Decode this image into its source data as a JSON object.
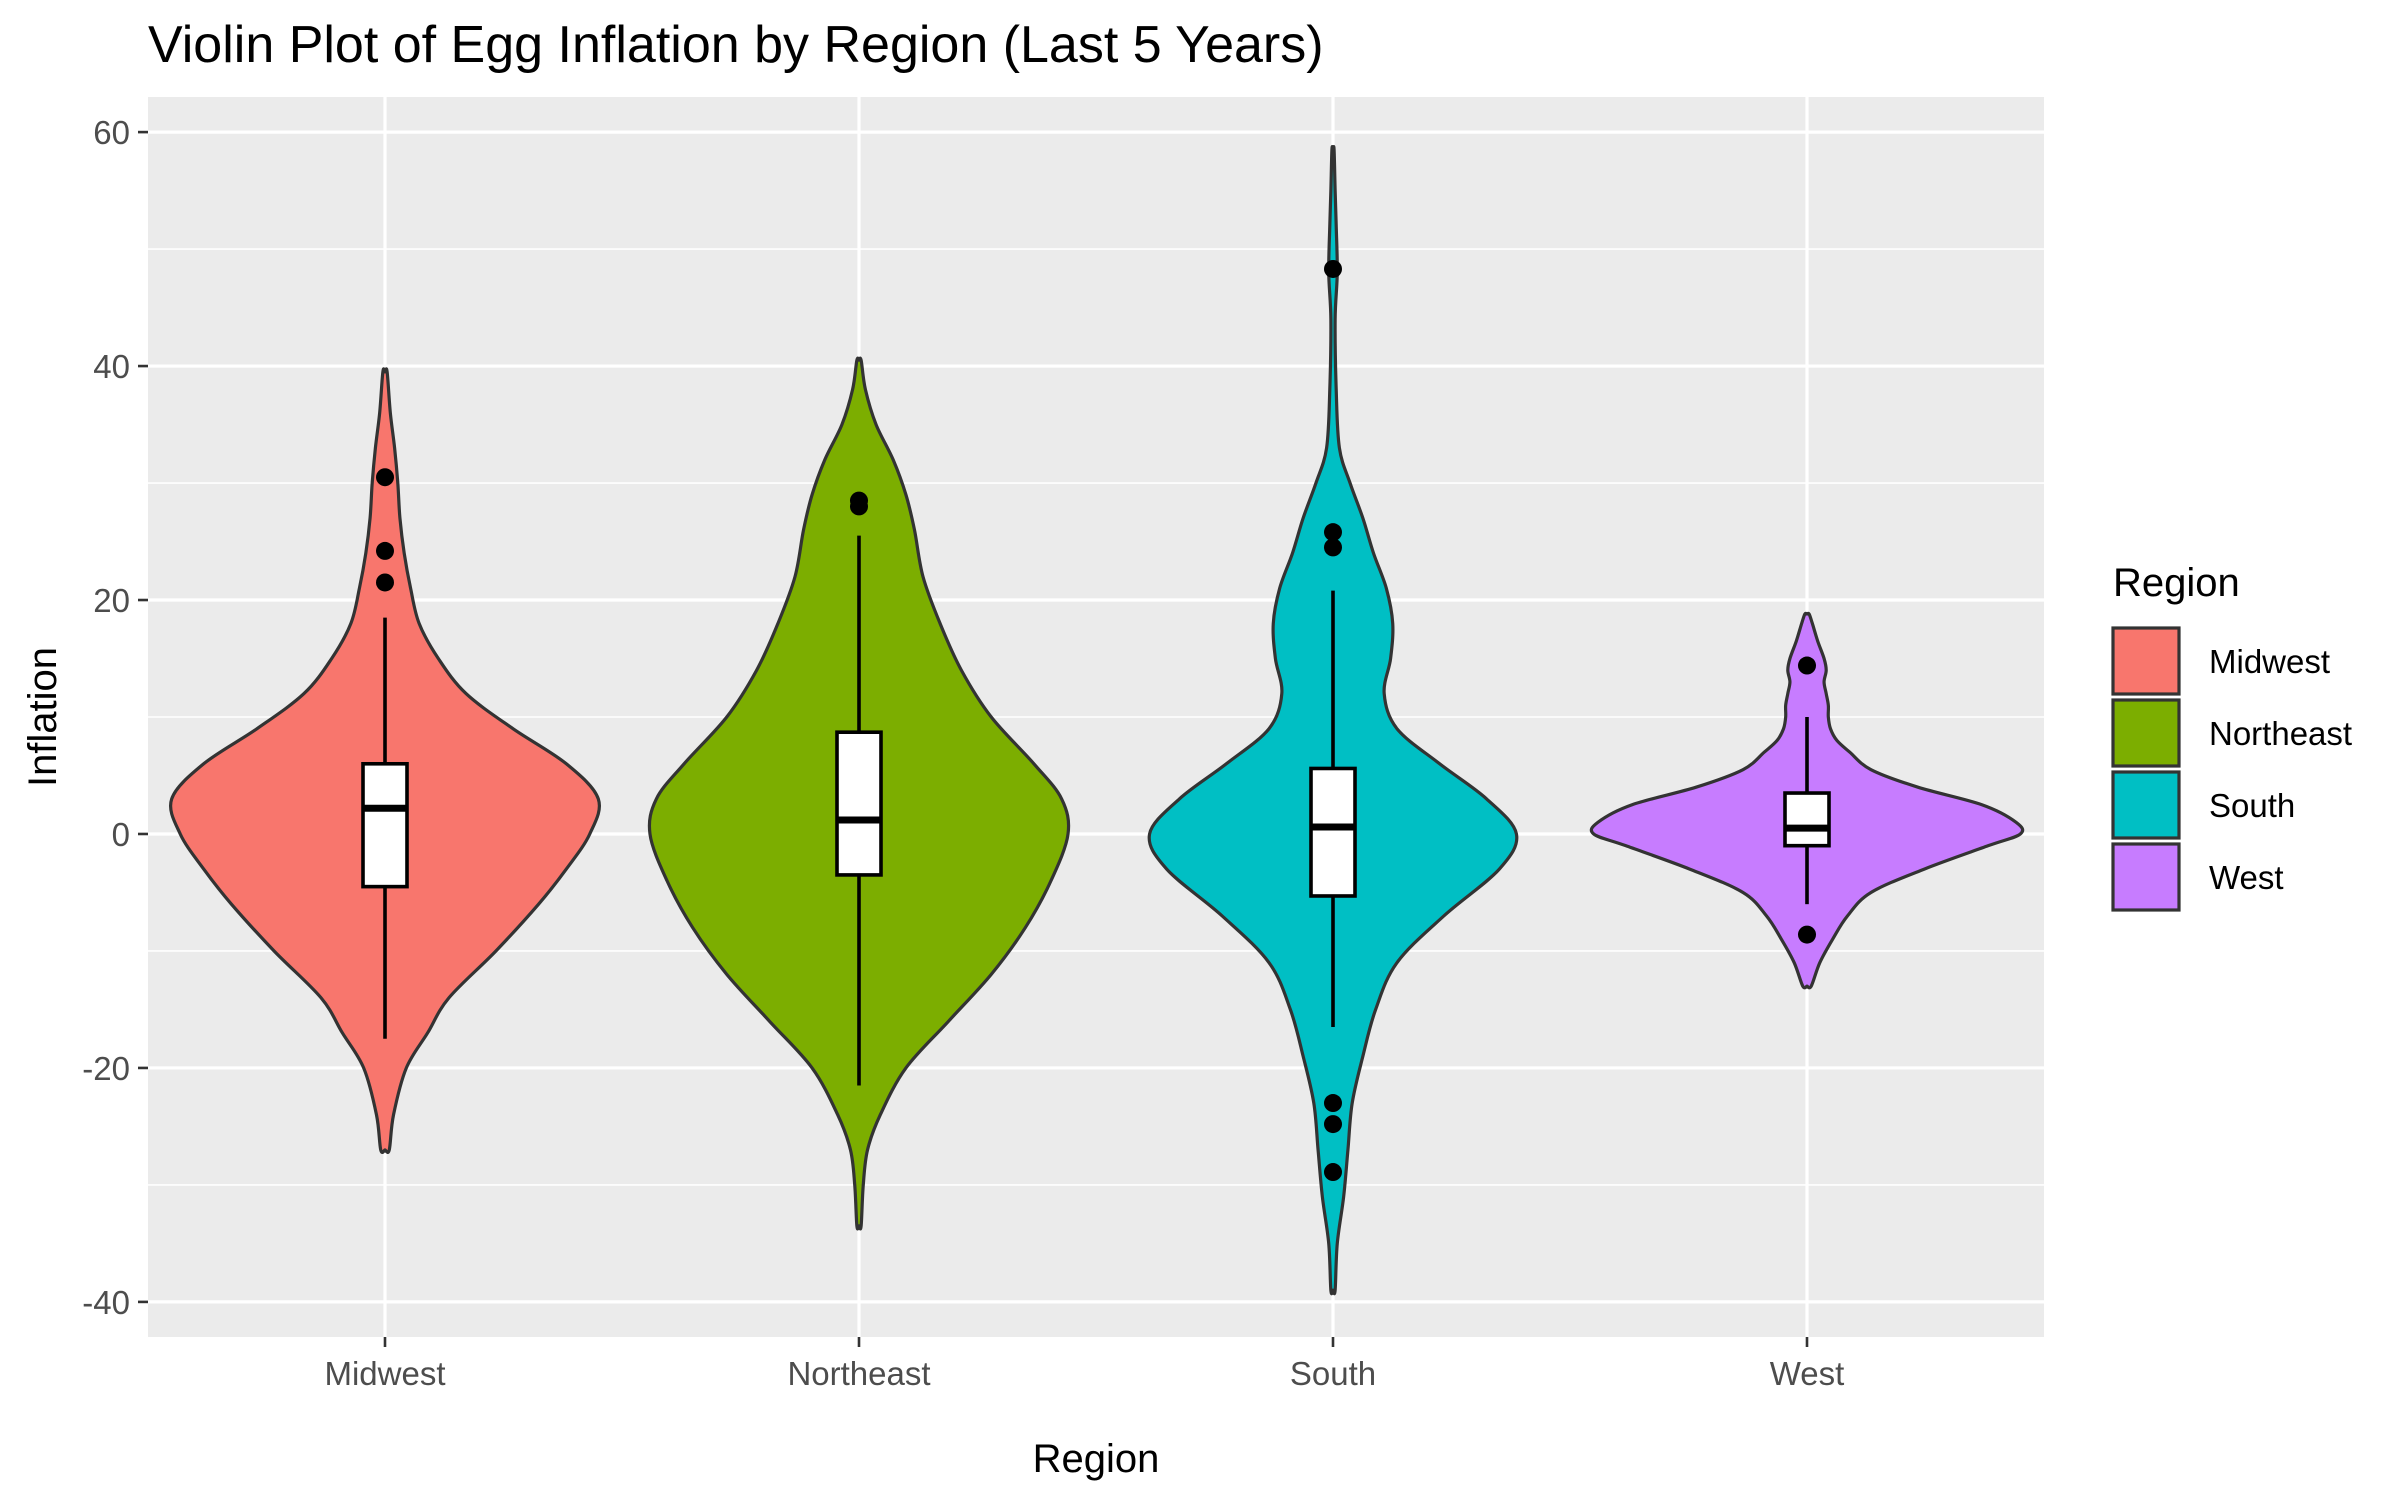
{
  "chart_data": {
    "type": "violin",
    "title": "Violin Plot of Egg Inflation by Region (Last 5 Years)",
    "xlabel": "Region",
    "ylabel": "Inflation",
    "ylim": [
      -43,
      63
    ],
    "y_ticks": [
      -40,
      -20,
      0,
      20,
      40,
      60
    ],
    "categories": [
      "Midwest",
      "Northeast",
      "South",
      "West"
    ],
    "legend": {
      "title": "Region",
      "position": "right"
    },
    "grid": true,
    "background": "#EBEBEB",
    "series": [
      {
        "name": "Midwest",
        "color": "#F8766D",
        "range": [
          -27,
          39.5
        ],
        "box": {
          "lower_whisker": -17.5,
          "q1": -4.5,
          "median": 2.2,
          "q3": 6.0,
          "upper_whisker": 18.5
        },
        "outliers": [
          30.5,
          24.2,
          21.5
        ],
        "density": [
          [
            -27,
            0.02
          ],
          [
            -24,
            0.04
          ],
          [
            -20,
            0.1
          ],
          [
            -17,
            0.2
          ],
          [
            -14,
            0.3
          ],
          [
            -10,
            0.52
          ],
          [
            -6,
            0.72
          ],
          [
            -3,
            0.85
          ],
          [
            0,
            0.96
          ],
          [
            3,
            1.0
          ],
          [
            6,
            0.85
          ],
          [
            9,
            0.6
          ],
          [
            12,
            0.38
          ],
          [
            15,
            0.25
          ],
          [
            18,
            0.16
          ],
          [
            21,
            0.12
          ],
          [
            24,
            0.09
          ],
          [
            27,
            0.07
          ],
          [
            30,
            0.06
          ],
          [
            33,
            0.045
          ],
          [
            36,
            0.025
          ],
          [
            39.5,
            0.01
          ]
        ]
      },
      {
        "name": "Northeast",
        "color": "#7CAE00",
        "range": [
          -33.5,
          40.5
        ],
        "box": {
          "lower_whisker": -21.5,
          "q1": -3.5,
          "median": 1.2,
          "q3": 8.7,
          "upper_whisker": 25.5
        },
        "outliers": [
          28.5,
          28.0
        ],
        "density": [
          [
            -33.5,
            0.01
          ],
          [
            -30,
            0.02
          ],
          [
            -27,
            0.04
          ],
          [
            -24,
            0.1
          ],
          [
            -20,
            0.22
          ],
          [
            -16,
            0.42
          ],
          [
            -12,
            0.62
          ],
          [
            -8,
            0.78
          ],
          [
            -4,
            0.9
          ],
          [
            0,
            0.98
          ],
          [
            3,
            0.95
          ],
          [
            6,
            0.82
          ],
          [
            10,
            0.62
          ],
          [
            14,
            0.48
          ],
          [
            18,
            0.38
          ],
          [
            22,
            0.3
          ],
          [
            26,
            0.26
          ],
          [
            29,
            0.22
          ],
          [
            32,
            0.16
          ],
          [
            35,
            0.08
          ],
          [
            38,
            0.03
          ],
          [
            40.5,
            0.01
          ]
        ]
      },
      {
        "name": "South",
        "color": "#00BFC4",
        "range": [
          -39,
          58.5
        ],
        "box": {
          "lower_whisker": -16.5,
          "q1": -5.3,
          "median": 0.6,
          "q3": 5.6,
          "upper_whisker": 20.8
        },
        "outliers": [
          48.3,
          25.8,
          24.5,
          -23.0,
          -24.8,
          -28.9
        ],
        "density": [
          [
            -39,
            0.01
          ],
          [
            -35,
            0.02
          ],
          [
            -31,
            0.05
          ],
          [
            -27,
            0.07
          ],
          [
            -23,
            0.09
          ],
          [
            -19,
            0.14
          ],
          [
            -15,
            0.2
          ],
          [
            -11,
            0.3
          ],
          [
            -7,
            0.52
          ],
          [
            -3,
            0.78
          ],
          [
            0,
            0.86
          ],
          [
            3,
            0.72
          ],
          [
            6,
            0.5
          ],
          [
            9,
            0.3
          ],
          [
            12,
            0.24
          ],
          [
            15,
            0.27
          ],
          [
            18,
            0.28
          ],
          [
            21,
            0.25
          ],
          [
            24,
            0.19
          ],
          [
            27,
            0.14
          ],
          [
            30,
            0.08
          ],
          [
            33,
            0.03
          ],
          [
            38,
            0.015
          ],
          [
            44,
            0.01
          ],
          [
            48,
            0.02
          ],
          [
            52,
            0.015
          ],
          [
            55,
            0.01
          ],
          [
            58.5,
            0.005
          ]
        ]
      },
      {
        "name": "West",
        "color": "#C77CFF",
        "range": [
          -13,
          18.8
        ],
        "box": {
          "lower_whisker": -6.0,
          "q1": -1.0,
          "median": 0.5,
          "q3": 3.5,
          "upper_whisker": 10.0
        },
        "outliers": [
          14.4,
          -8.6
        ],
        "density": [
          [
            -13,
            0.02
          ],
          [
            -11,
            0.06
          ],
          [
            -9,
            0.12
          ],
          [
            -7,
            0.19
          ],
          [
            -5,
            0.3
          ],
          [
            -3,
            0.55
          ],
          [
            -1,
            0.85
          ],
          [
            0,
            1.0
          ],
          [
            1,
            0.98
          ],
          [
            2.5,
            0.82
          ],
          [
            4,
            0.52
          ],
          [
            5.5,
            0.3
          ],
          [
            7,
            0.2
          ],
          [
            8,
            0.14
          ],
          [
            9,
            0.11
          ],
          [
            10,
            0.1
          ],
          [
            11,
            0.1
          ],
          [
            12,
            0.09
          ],
          [
            13,
            0.08
          ],
          [
            14,
            0.09
          ],
          [
            15,
            0.08
          ],
          [
            16.5,
            0.05
          ],
          [
            18,
            0.025
          ],
          [
            18.8,
            0.01
          ]
        ]
      }
    ]
  }
}
